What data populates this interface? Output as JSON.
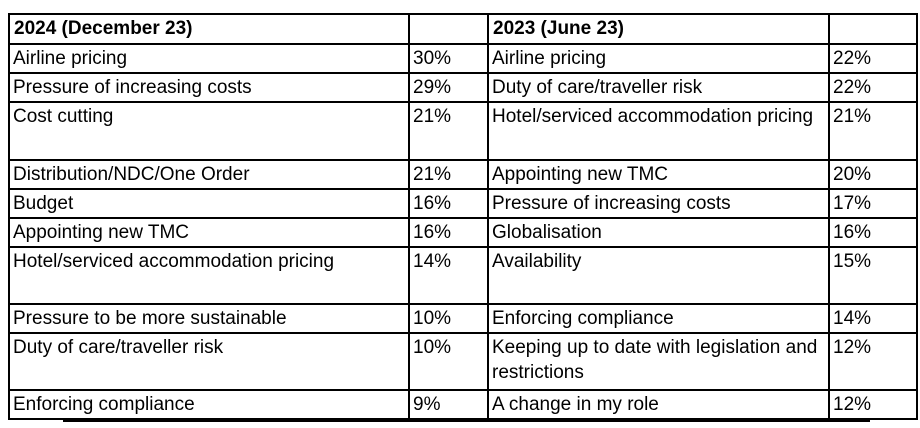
{
  "colors": {
    "background": "#ffffff",
    "border": "#000000",
    "text": "#000000"
  },
  "table": {
    "headers": {
      "y2024": "2024 (December 23)",
      "y2023": "2023 (June 23)"
    },
    "rows": [
      {
        "topic_2024": "Airline pricing",
        "value_2024": "30%",
        "topic_2023": "Airline pricing",
        "value_2023": "22%"
      },
      {
        "topic_2024": "Pressure of increasing costs",
        "value_2024": "29%",
        "topic_2023": "Duty of care/traveller risk",
        "value_2023": "22%"
      },
      {
        "topic_2024": "Cost cutting",
        "value_2024": "21%",
        "topic_2023": "Hotel/serviced accommodation pricing",
        "value_2023": "21%"
      },
      {
        "topic_2024": "Distribution/NDC/One Order",
        "value_2024": "21%",
        "topic_2023": "Appointing new TMC",
        "value_2023": "20%"
      },
      {
        "topic_2024": "Budget",
        "value_2024": "16%",
        "topic_2023": "Pressure of increasing costs",
        "value_2023": "17%"
      },
      {
        "topic_2024": "Appointing new TMC",
        "value_2024": "16%",
        "topic_2023": "Globalisation",
        "value_2023": "16%"
      },
      {
        "topic_2024": "Hotel/serviced accommodation pricing",
        "value_2024": "14%",
        "topic_2023": "Availability",
        "value_2023": "15%"
      },
      {
        "topic_2024": "Pressure to be more sustainable",
        "value_2024": "10%",
        "topic_2023": "Enforcing compliance",
        "value_2023": "14%"
      },
      {
        "topic_2024": "Duty of care/traveller risk",
        "value_2024": "10%",
        "topic_2023": "Keeping up to date with legislation and restrictions",
        "value_2023": "12%"
      },
      {
        "topic_2024": "Enforcing compliance",
        "value_2024": "9%",
        "topic_2023": "A change in my role",
        "value_2023": "12%"
      }
    ]
  }
}
